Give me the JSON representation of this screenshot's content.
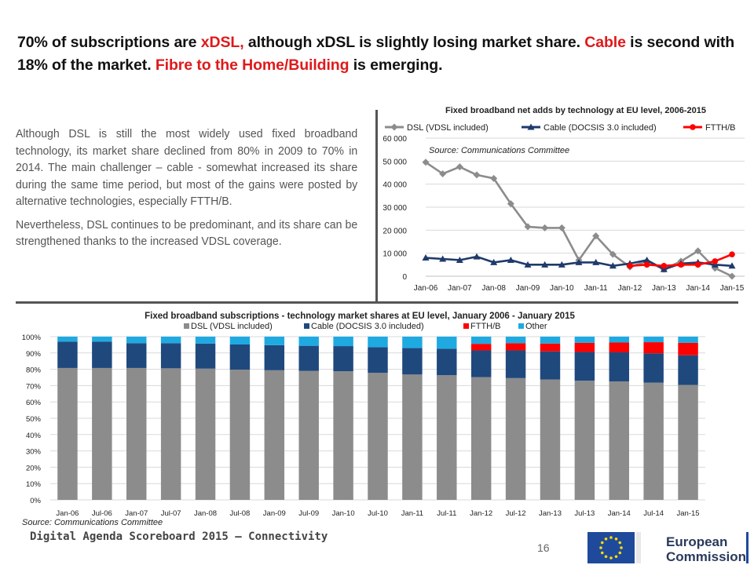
{
  "headline": {
    "p1": "70% of subscriptions are ",
    "p2": "xDSL,",
    "p3": " although xDSL is slightly losing market share. ",
    "p4": "Cable",
    "p5": " is second with 18% of the market. ",
    "p6": "Fibre to the Home/Building",
    "p7": " is emerging."
  },
  "body": {
    "para1": "Although DSL is still the most widely used fixed broadband technology, its market share declined from 80% in 2009 to 70% in 2014. The main challenger – cable - somewhat increased its share during the same time period, but most of the gains were posted by alternative technologies, especially FTTH/B.",
    "para2": "Nevertheless, DSL continues to be predominant, and its share can be strengthened thanks to the increased VDSL coverage."
  },
  "footer": {
    "left": "Digital Agenda Scoreboard 2015 – Connectivity",
    "page": "16",
    "logo_text_1": "European",
    "logo_text_2": "Commission"
  },
  "chart_data": [
    {
      "type": "line",
      "title": "Fixed broadband net adds by technology at EU level, 2006-2015",
      "annotation": "Source: Communications Committee",
      "x_tick_labels": [
        "Jan-06",
        "Jan-07",
        "Jan-08",
        "Jan-09",
        "Jan-10",
        "Jan-11",
        "Jan-12",
        "Jan-13",
        "Jan-14",
        "Jan-15"
      ],
      "y_tick_labels": [
        "0",
        "10 000",
        "20 000",
        "30 000",
        "40 000",
        "50 000",
        "60 000"
      ],
      "ylim": [
        0,
        60000
      ],
      "x": [
        "Jan-06",
        "Jul-06",
        "Jan-07",
        "Jul-07",
        "Jan-08",
        "Jul-08",
        "Jan-09",
        "Jul-09",
        "Jan-10",
        "Jul-10",
        "Jan-11",
        "Jul-11",
        "Jan-12",
        "Jul-12",
        "Jan-13",
        "Jul-13",
        "Jan-14",
        "Jul-14",
        "Jan-15"
      ],
      "series": [
        {
          "name": "DSL (VDSL included)",
          "color": "#8c8c8c",
          "marker": "diamond",
          "values": [
            49500,
            44500,
            47500,
            44000,
            42500,
            31500,
            21500,
            21000,
            21000,
            7000,
            17500,
            9500,
            4000,
            6500,
            3000,
            6500,
            11000,
            3500,
            0
          ]
        },
        {
          "name": "Cable (DOCSIS 3.0 included)",
          "color": "#1f3a6b",
          "marker": "triangle",
          "values": [
            8000,
            7500,
            7000,
            8500,
            6000,
            7000,
            5000,
            5000,
            5000,
            6000,
            6000,
            4500,
            5500,
            7000,
            3000,
            5500,
            6000,
            5000,
            4500
          ]
        },
        {
          "name": "FTTH/B",
          "color": "#ff0000",
          "marker": "circle",
          "values": [
            null,
            null,
            null,
            null,
            null,
            null,
            null,
            null,
            null,
            null,
            null,
            null,
            4500,
            5000,
            4500,
            5000,
            5000,
            6500,
            9500
          ]
        }
      ],
      "legend_placement": "top",
      "grid": true
    },
    {
      "type": "bar",
      "stacked": true,
      "title": "Fixed broadband subscriptions - technology market shares at EU level,   January 2006 - January 2015",
      "annotation": "Source: Communications Committee",
      "categories": [
        "Jan-06",
        "Jul-06",
        "Jan-07",
        "Jul-07",
        "Jan-08",
        "Jul-08",
        "Jan-09",
        "Jul-09",
        "Jan-10",
        "Jul-10",
        "Jan-11",
        "Jul-11",
        "Jan-12",
        "Jul-12",
        "Jan-13",
        "Jul-13",
        "Jan-14",
        "Jul-14",
        "Jan-15"
      ],
      "y_tick_labels": [
        "0%",
        "10%",
        "20%",
        "30%",
        "40%",
        "50%",
        "60%",
        "70%",
        "80%",
        "90%",
        "100%"
      ],
      "ylim": [
        0,
        100
      ],
      "series": [
        {
          "name": "DSL (VDSL included)",
          "color": "#8c8c8c",
          "values": [
            80.8,
            80.8,
            80.8,
            80.6,
            80.4,
            79.8,
            79.4,
            79.0,
            78.8,
            77.8,
            76.8,
            76.4,
            75.2,
            74.6,
            73.8,
            73.0,
            72.6,
            71.8,
            70.4
          ]
        },
        {
          "name": "Cable (DOCSIS 3.0 included)",
          "color": "#1f497d",
          "values": [
            16.2,
            16.2,
            15.2,
            15.4,
            15.4,
            15.4,
            15.4,
            15.4,
            15.4,
            15.8,
            16.2,
            16.2,
            16.4,
            17.0,
            17.2,
            17.6,
            17.8,
            18.0,
            18.2
          ]
        },
        {
          "name": "FTTH/B",
          "color": "#ff0000",
          "values": [
            0,
            0,
            0,
            0,
            0,
            0,
            0,
            0,
            0,
            0,
            0,
            0,
            4.0,
            4.4,
            4.8,
            5.6,
            6.0,
            6.8,
            7.6
          ]
        },
        {
          "name": "Other",
          "color": "#1eaae1",
          "values": [
            3.0,
            3.0,
            4.0,
            4.0,
            4.2,
            4.8,
            5.2,
            5.6,
            5.8,
            6.4,
            7.0,
            7.4,
            4.4,
            4.0,
            4.2,
            3.8,
            3.6,
            3.4,
            3.8
          ]
        }
      ],
      "legend_placement": "top",
      "grid": true
    }
  ]
}
